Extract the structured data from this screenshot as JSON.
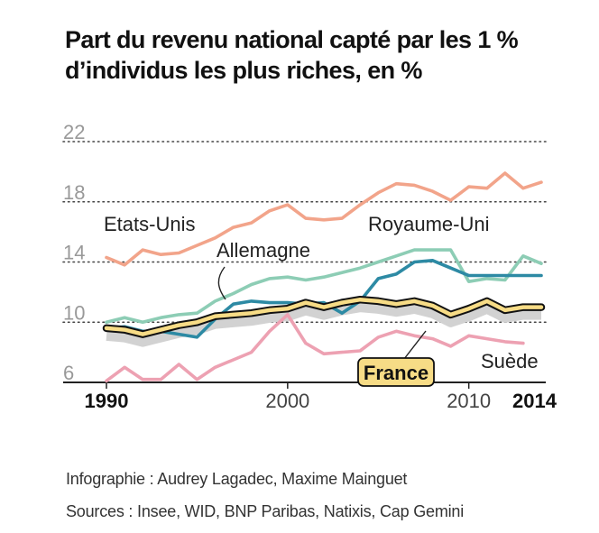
{
  "title": {
    "line1": "Part du revenu national capté par les 1 %",
    "line2": "d’individus les plus riches, en %"
  },
  "credits": {
    "infographie": "Infographie : Audrey Lagadec, Maxime Mainguet",
    "sources": "Sources : Insee, WID, BNP Paribas, Natixis, Cap Gemini"
  },
  "chart_data": {
    "type": "line",
    "title": "Part du revenu national capté par les 1 % d’individus les plus riches, en %",
    "xlim": [
      1990,
      2014
    ],
    "ylim": [
      6,
      22
    ],
    "y_ticks": [
      {
        "value": 22,
        "label": "22"
      },
      {
        "value": 18,
        "label": "18"
      },
      {
        "value": 14,
        "label": "14"
      },
      {
        "value": 10,
        "label": "10"
      },
      {
        "value": 6,
        "label": "6"
      }
    ],
    "x_ticks": [
      {
        "value": 1990,
        "label": "1990",
        "bold": true
      },
      {
        "value": 2000,
        "label": "2000",
        "bold": false
      },
      {
        "value": 2010,
        "label": "2010",
        "bold": false
      },
      {
        "value": 2014,
        "label": "2014",
        "bold": true
      }
    ],
    "grid": "horizontal dotted",
    "series": [
      {
        "name": "Etats-Unis",
        "color": "#f2a48a",
        "x": [
          1990,
          1991,
          1992,
          1993,
          1994,
          1995,
          1996,
          1997,
          1998,
          1999,
          2000,
          2001,
          2002,
          2003,
          2004,
          2005,
          2006,
          2007,
          2008,
          2009,
          2010,
          2011,
          2012,
          2013,
          2014
        ],
        "y": [
          14.3,
          13.8,
          14.8,
          14.5,
          14.6,
          15.1,
          15.6,
          16.3,
          16.6,
          17.4,
          17.8,
          16.9,
          16.8,
          16.9,
          17.8,
          18.6,
          19.2,
          19.1,
          18.7,
          18.1,
          19.0,
          18.9,
          19.9,
          18.9,
          19.3
        ]
      },
      {
        "name": "Royaume-Uni",
        "color": "#8dcdb5",
        "x": [
          1990,
          1991,
          1992,
          1993,
          1994,
          1995,
          1996,
          1997,
          1998,
          1999,
          2000,
          2001,
          2002,
          2003,
          2004,
          2005,
          2006,
          2007,
          2008,
          2009,
          2010,
          2011,
          2012,
          2013,
          2014
        ],
        "y": [
          10.0,
          10.3,
          10.0,
          10.3,
          10.5,
          10.6,
          11.4,
          11.9,
          12.5,
          12.9,
          13.0,
          12.8,
          13.0,
          13.3,
          13.6,
          14.0,
          14.4,
          14.8,
          14.8,
          14.8,
          12.7,
          12.9,
          12.8,
          14.4,
          13.9
        ]
      },
      {
        "name": "Allemagne",
        "color": "#2d8aa4",
        "x": [
          1990,
          1991,
          1992,
          1993,
          1994,
          1995,
          1996,
          1997,
          1998,
          1999,
          2000,
          2001,
          2002,
          2003,
          2004,
          2005,
          2006,
          2007,
          2008,
          2009,
          2010,
          2011,
          2012,
          2013,
          2014
        ],
        "y": [
          9.6,
          9.7,
          9.4,
          9.4,
          9.2,
          9.0,
          10.2,
          11.2,
          11.4,
          11.3,
          11.3,
          11.2,
          11.3,
          10.6,
          11.4,
          12.9,
          13.2,
          14.0,
          14.1,
          13.6,
          13.1,
          13.1,
          13.1,
          13.1,
          13.1
        ]
      },
      {
        "name": "Suède",
        "color": "#eda1b2",
        "x": [
          1990,
          1991,
          1992,
          1993,
          1994,
          1995,
          1996,
          1997,
          1998,
          1999,
          2000,
          2001,
          2002,
          2003,
          2004,
          2005,
          2006,
          2007,
          2008,
          2009,
          2010,
          2011,
          2012,
          2013
        ],
        "y": [
          6.1,
          7.0,
          6.2,
          6.2,
          7.2,
          6.2,
          7.0,
          7.5,
          8.0,
          9.4,
          10.5,
          8.6,
          7.9,
          8.0,
          8.1,
          9.0,
          9.4,
          9.1,
          8.9,
          8.4,
          9.1,
          8.9,
          8.7,
          8.6
        ]
      },
      {
        "name": "France",
        "color": "#111111",
        "fill": "#f7dc86",
        "x": [
          1990,
          1991,
          1992,
          1993,
          1994,
          1995,
          1996,
          1997,
          1998,
          1999,
          2000,
          2001,
          2002,
          2003,
          2004,
          2005,
          2006,
          2007,
          2008,
          2009,
          2010,
          2011,
          2012,
          2013,
          2014
        ],
        "y": [
          9.6,
          9.5,
          9.2,
          9.5,
          9.8,
          10.0,
          10.4,
          10.5,
          10.6,
          10.8,
          10.9,
          11.3,
          11.0,
          11.3,
          11.5,
          11.4,
          11.2,
          11.4,
          11.1,
          10.5,
          10.9,
          11.4,
          10.8,
          11.0,
          11.0
        ]
      }
    ],
    "labels": {
      "etats_unis": "Etats-Unis",
      "royaume_uni": "Royaume-Uni",
      "allemagne": "Allemagne",
      "suede": "Suède",
      "france": "France"
    }
  }
}
